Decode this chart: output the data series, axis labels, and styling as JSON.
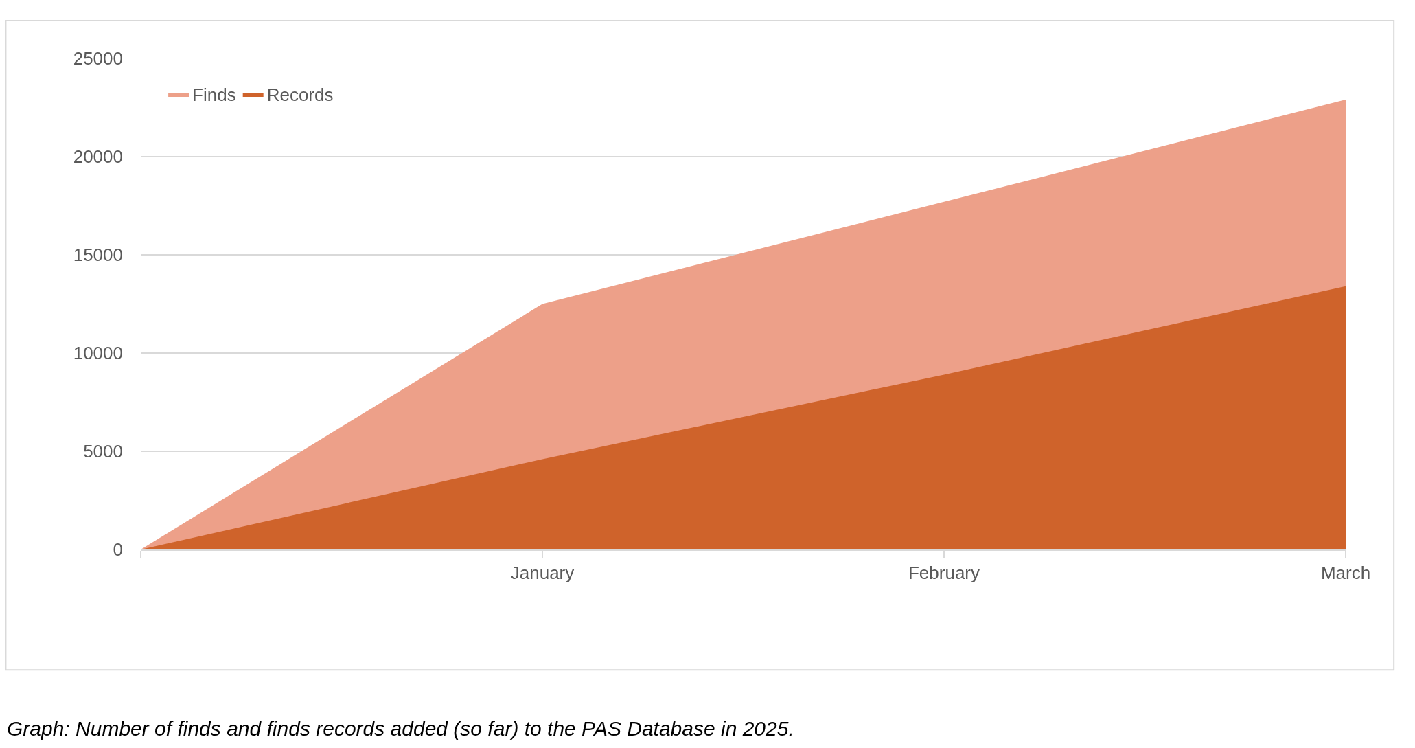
{
  "chart_data": {
    "type": "area",
    "categories": [
      null,
      "January",
      "February",
      "March"
    ],
    "series": [
      {
        "name": "Finds",
        "color": "#eda089",
        "values": [
          0,
          12500,
          17700,
          22900
        ]
      },
      {
        "name": "Records",
        "color": "#cf632b",
        "values": [
          0,
          4600,
          8900,
          13400
        ]
      }
    ],
    "ylim": [
      0,
      25000
    ],
    "yticks": [
      0,
      5000,
      10000,
      15000,
      20000,
      25000
    ],
    "grid": "y",
    "legend": "top left",
    "annotations": [
      "Graph: Number of finds and finds records added (so far) to the PAS Database in 2025."
    ]
  }
}
